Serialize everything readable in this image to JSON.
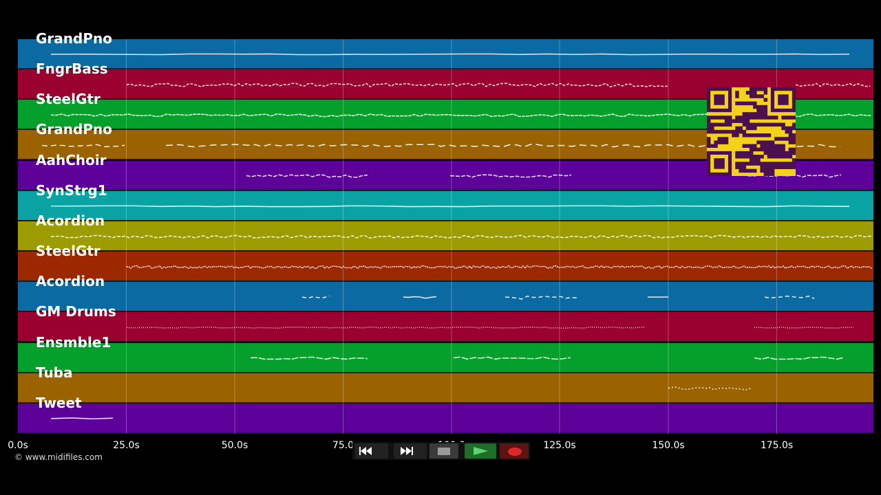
{
  "tracks": [
    {
      "name": "GrandPno",
      "color": "#0a6aa1"
    },
    {
      "name": "FngrBass",
      "color": "#9a0030"
    },
    {
      "name": "SteelGtr",
      "color": "#05a02c"
    },
    {
      "name": "GrandPno",
      "color": "#9a6300"
    },
    {
      "name": "AahChoir",
      "color": "#5d0099"
    },
    {
      "name": "SynStrg1",
      "color": "#0aa3a3"
    },
    {
      "name": "Acordion",
      "color": "#9c9c00"
    },
    {
      "name": "SteelGtr",
      "color": "#9c2800"
    },
    {
      "name": "Acordion",
      "color": "#0a6aa1"
    },
    {
      "name": "GM Drums",
      "color": "#9a0030"
    },
    {
      "name": "Ensmble1",
      "color": "#05a02c"
    },
    {
      "name": "Tuba",
      "color": "#9a6300"
    },
    {
      "name": "Tweet",
      "color": "#5d0099"
    }
  ],
  "timeline": {
    "ticks": [
      "0.0s",
      "25.0s",
      "50.0s",
      "75.0",
      "100.0",
      "125.0s",
      "150.0s",
      "175.0s"
    ],
    "max_seconds": 197.5
  },
  "copyright": "© www.midifiles.com",
  "controls": {
    "rewind": "rewind-icon",
    "fast_forward": "fast-forward-icon",
    "stop": "stop-icon",
    "play": "play-icon",
    "record": "record-icon"
  },
  "qr_code": "qr-code"
}
